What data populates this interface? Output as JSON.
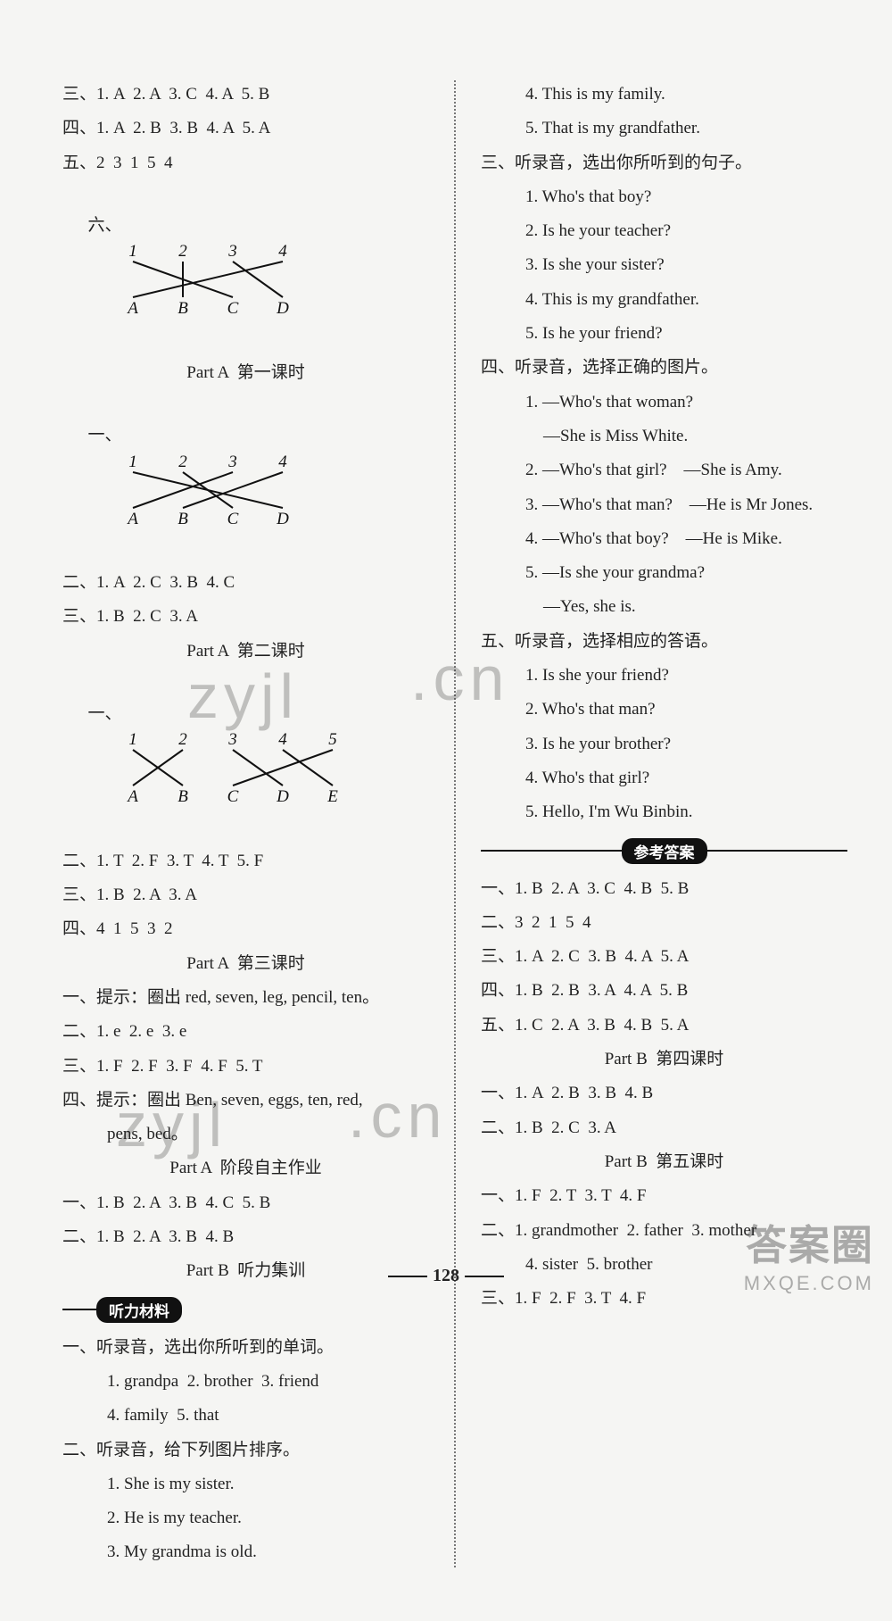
{
  "pageNumber": "128",
  "left": {
    "l1": "三、1. A  2. A  3. C  4. A  5. B",
    "l2": "四、1. A  2. B  3. B  4. A  5. A",
    "l3": "五、2  3  1  5  4",
    "l4_prefix": "六、",
    "match1": {
      "top": [
        "1",
        "2",
        "3",
        "4"
      ],
      "bot": [
        "A",
        "B",
        "C",
        "D"
      ],
      "edges": [
        [
          0,
          2
        ],
        [
          1,
          1
        ],
        [
          2,
          3
        ],
        [
          3,
          0
        ]
      ]
    },
    "h1": "Part A  第一课时",
    "l5_prefix": "一、",
    "match2": {
      "top": [
        "1",
        "2",
        "3",
        "4"
      ],
      "bot": [
        "A",
        "B",
        "C",
        "D"
      ],
      "edges": [
        [
          0,
          3
        ],
        [
          1,
          2
        ],
        [
          2,
          0
        ],
        [
          3,
          1
        ]
      ]
    },
    "l6": "二、1. A  2. C  3. B  4. C",
    "l7": "三、1. B  2. C  3. A",
    "h2": "Part A  第二课时",
    "l8_prefix": "一、",
    "match3": {
      "top": [
        "1",
        "2",
        "3",
        "4",
        "5"
      ],
      "bot": [
        "A",
        "B",
        "C",
        "D",
        "E"
      ],
      "edges": [
        [
          0,
          1
        ],
        [
          1,
          0
        ],
        [
          2,
          3
        ],
        [
          3,
          4
        ],
        [
          4,
          2
        ]
      ]
    },
    "l9": "二、1. T  2. F  3. T  4. T  5. F",
    "l10": "三、1. B  2. A  3. A",
    "l11": "四、4  1  5  3  2",
    "h3": "Part A  第三课时",
    "l12": "一、提示：圈出 red, seven, leg, pencil, ten。",
    "l13": "二、1. e  2. e  3. e",
    "l14": "三、1. F  2. F  3. F  4. F  5. T",
    "l15": "四、提示：圈出 Ben, seven, eggs, ten, red,",
    "l15b": "pens, bed。",
    "h4": "Part A  阶段自主作业",
    "l16": "一、1. B  2. A  3. B  4. C  5. B",
    "l17": "二、1. B  2. A  3. B  4. B",
    "h5": "Part B  听力集训",
    "pill1": "听力材料",
    "l18": "一、听录音，选出你所听到的单词。",
    "l19": "1. grandpa  2. brother  3. friend",
    "l20": "4. family  5. that",
    "l21": "二、听录音，给下列图片排序。",
    "l22": "1. She is my sister.",
    "l23": "2. He is my teacher.",
    "l24": "3. My grandma is old."
  },
  "right": {
    "r1": "4. This is my family.",
    "r2": "5. That is my grandfather.",
    "r3": "三、听录音，选出你所听到的句子。",
    "r4": "1. Who's that boy?",
    "r5": "2. Is he your teacher?",
    "r6": "3. Is she your sister?",
    "r7": "4. This is my grandfather.",
    "r8": "5. Is he your friend?",
    "r9": "四、听录音，选择正确的图片。",
    "r10a": "1. —Who's that woman?",
    "r10b": "—She is Miss White.",
    "r11": "2. —Who's that girl?    —She is Amy.",
    "r12": "3. —Who's that man?    —He is Mr Jones.",
    "r13": "4. —Who's that boy?    —He is Mike.",
    "r14a": "5. —Is she your grandma?",
    "r14b": "—Yes, she is.",
    "r15": "五、听录音，选择相应的答语。",
    "r16": "1. Is she your friend?",
    "r17": "2. Who's that man?",
    "r18": "3. Is he your brother?",
    "r19": "4. Who's that girl?",
    "r20": "5. Hello, I'm Wu Binbin.",
    "pill2": "参考答案",
    "r21": "一、1. B  2. A  3. C  4. B  5. B",
    "r22": "二、3  2  1  5  4",
    "r23": "三、1. A  2. C  3. B  4. A  5. A",
    "r24": "四、1. B  2. B  3. A  4. A  5. B",
    "r25": "五、1. C  2. A  3. B  4. B  5. A",
    "h6": "Part B  第四课时",
    "r26": "一、1. A  2. B  3. B  4. B",
    "r27": "二、1. B  2. C  3. A",
    "h7": "Part B  第五课时",
    "r28": "一、1. F  2. T  3. T  4. F",
    "r29": "二、1. grandmother  2. father  3. mother",
    "r29b": "4. sister  5. brother",
    "r30": "三、1. F  2. F  3. T  4. F"
  },
  "watermarks": {
    "w1": "zyjl",
    "w2": ".cn",
    "w3": "zyjl",
    "w4": ".cn",
    "brBig": "答案圈",
    "brSmall": "MXQE.COM"
  },
  "style": {
    "bg": "#f5f5f3",
    "text": "#222",
    "line_stroke": "#111",
    "line_width": 2,
    "fontsize": 19
  }
}
